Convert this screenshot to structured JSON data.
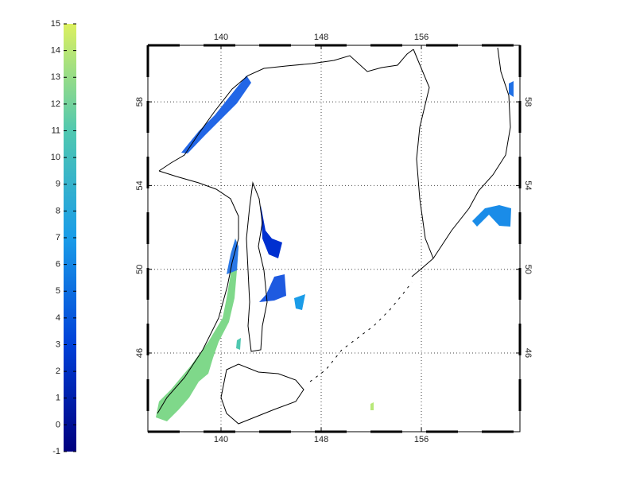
{
  "colorbar": {
    "lim": [
      -1,
      15
    ],
    "ticks": [
      -1,
      0,
      1,
      2,
      3,
      4,
      5,
      6,
      7,
      8,
      9,
      10,
      11,
      12,
      13,
      14,
      15
    ],
    "colors": [
      "#00007f",
      "#0040d8",
      "#1a9ce8",
      "#50c8b0",
      "#dcf060"
    ]
  },
  "map": {
    "xlim": [
      134.16,
      163.87
    ],
    "ylim": [
      42.24,
      60.7
    ],
    "xticks": [
      140,
      148,
      156
    ],
    "yticks": [
      46,
      50,
      54,
      58
    ],
    "grid": true
  }
}
